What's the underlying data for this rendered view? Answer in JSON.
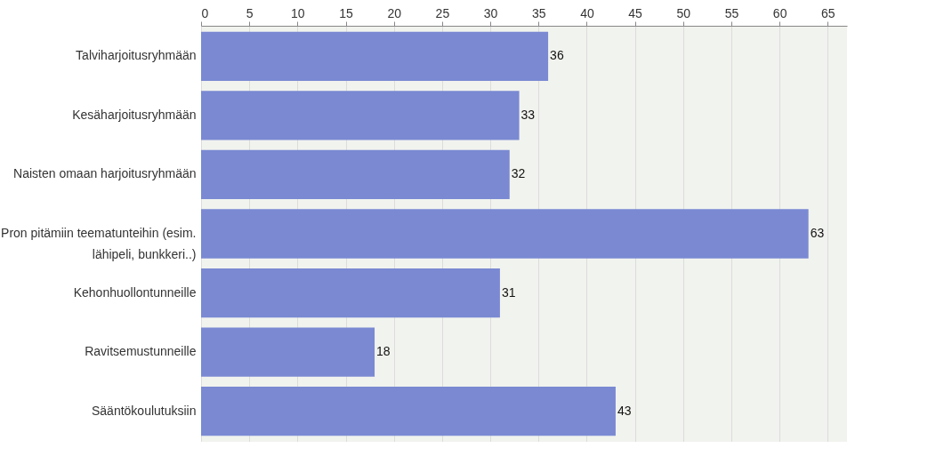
{
  "chart_data": {
    "type": "bar",
    "orientation": "horizontal",
    "categories": [
      "Talviharjoitusryhmään",
      "Kesäharjoitusryhmään",
      "Naisten omaan harjoitusryhmään",
      "Pron pitämiin teematunteihin (esim. lähipeli, bunkkeri..)",
      "Kehonhuollontunneille",
      "Ravitsemustunneille",
      "Sääntökoulutuksiin"
    ],
    "values": [
      36,
      33,
      32,
      63,
      31,
      18,
      43
    ],
    "color": "#7a89d2",
    "xlim": [
      0,
      67
    ],
    "xticks": [
      0,
      5,
      10,
      15,
      20,
      25,
      30,
      35,
      40,
      45,
      50,
      55,
      60,
      65
    ],
    "grid": "x",
    "data_labels": true
  }
}
